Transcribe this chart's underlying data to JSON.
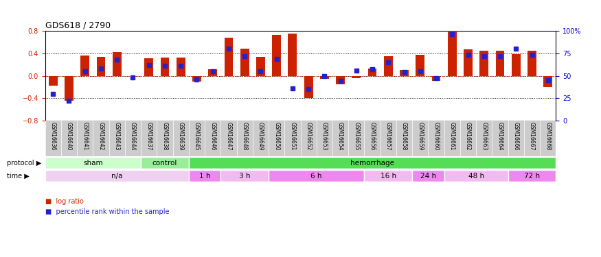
{
  "title": "GDS618 / 2790",
  "samples": [
    "GSM16636",
    "GSM16640",
    "GSM16641",
    "GSM16642",
    "GSM16643",
    "GSM16644",
    "GSM16637",
    "GSM16638",
    "GSM16639",
    "GSM16645",
    "GSM16646",
    "GSM16647",
    "GSM16648",
    "GSM16649",
    "GSM16650",
    "GSM16651",
    "GSM16652",
    "GSM16653",
    "GSM16654",
    "GSM16655",
    "GSM16656",
    "GSM16657",
    "GSM16658",
    "GSM16659",
    "GSM16660",
    "GSM16661",
    "GSM16662",
    "GSM16663",
    "GSM16664",
    "GSM16666",
    "GSM16667",
    "GSM16668"
  ],
  "log_ratio": [
    -0.18,
    -0.44,
    0.36,
    0.34,
    0.42,
    0.0,
    0.31,
    0.32,
    0.32,
    -0.1,
    0.12,
    0.68,
    0.48,
    0.33,
    0.73,
    0.75,
    -0.4,
    -0.05,
    -0.15,
    -0.04,
    0.13,
    0.35,
    0.1,
    0.37,
    -0.09,
    0.8,
    0.47,
    0.44,
    0.44,
    0.38,
    0.45,
    -0.2
  ],
  "pct_rank": [
    30,
    22,
    55,
    58,
    68,
    48,
    62,
    61,
    61,
    46,
    55,
    80,
    72,
    55,
    69,
    36,
    35,
    50,
    44,
    56,
    57,
    65,
    54,
    55,
    47,
    96,
    73,
    72,
    72,
    80,
    73,
    45
  ],
  "protocol_groups": [
    {
      "label": "sham",
      "start": 0,
      "end": 5,
      "color": "#ccffcc"
    },
    {
      "label": "control",
      "start": 6,
      "end": 8,
      "color": "#99ee99"
    },
    {
      "label": "hemorrhage",
      "start": 9,
      "end": 31,
      "color": "#55dd55"
    }
  ],
  "time_groups": [
    {
      "label": "n/a",
      "start": 0,
      "end": 8,
      "color": "#f0d0f0"
    },
    {
      "label": "1 h",
      "start": 9,
      "end": 10,
      "color": "#ee88ee"
    },
    {
      "label": "3 h",
      "start": 11,
      "end": 13,
      "color": "#f0bbf0"
    },
    {
      "label": "6 h",
      "start": 14,
      "end": 19,
      "color": "#ee88ee"
    },
    {
      "label": "16 h",
      "start": 20,
      "end": 22,
      "color": "#f0bbf0"
    },
    {
      "label": "24 h",
      "start": 23,
      "end": 24,
      "color": "#ee88ee"
    },
    {
      "label": "48 h",
      "start": 25,
      "end": 28,
      "color": "#f0bbf0"
    },
    {
      "label": "72 h",
      "start": 29,
      "end": 31,
      "color": "#ee88ee"
    }
  ],
  "ylim": [
    -0.8,
    0.8
  ],
  "yticks_left": [
    -0.8,
    -0.4,
    0.0,
    0.4,
    0.8
  ],
  "yticks_right": [
    0,
    25,
    50,
    75,
    100
  ],
  "bar_color": "#cc2200",
  "dot_color": "#2222cc",
  "ref_line_color": "#cc2200",
  "dot_color_dark": "#0000aa",
  "bg_color": "#ffffff",
  "label_area_bg": "#cccccc"
}
